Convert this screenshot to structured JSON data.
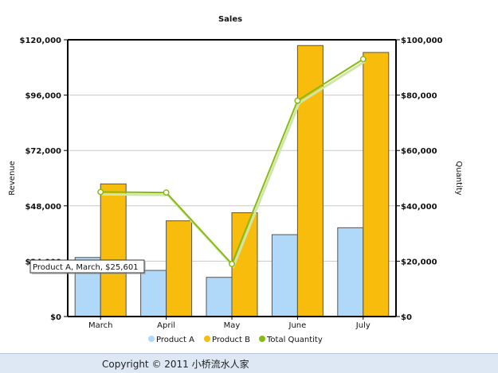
{
  "chart_data": {
    "type": "bar",
    "title": "Sales",
    "categories": [
      "March",
      "April",
      "May",
      "June",
      "July"
    ],
    "series": [
      {
        "name": "Product A",
        "type": "bar",
        "axis": "left",
        "color": "#b0d8f8",
        "values": [
          25601,
          20000,
          17000,
          35500,
          38500
        ]
      },
      {
        "name": "Product B",
        "type": "bar",
        "axis": "left",
        "color": "#f8bc0c",
        "values": [
          57500,
          41500,
          45000,
          117500,
          114500
        ]
      },
      {
        "name": "Total Quantity",
        "type": "line",
        "axis": "right",
        "color": "#88bb11",
        "values": [
          45000,
          44800,
          19000,
          78000,
          93000
        ]
      }
    ],
    "ylabel": "Revenue",
    "y2label": "Quantity",
    "ylim": [
      0,
      120000
    ],
    "y2lim": [
      0,
      100000
    ],
    "yticks": [
      "$0",
      "$24,000",
      "$48,000",
      "$72,000",
      "$96,000",
      "$120,000"
    ],
    "y2ticks": [
      "$0",
      "$20,000",
      "$40,000",
      "$60,000",
      "$80,000",
      "$100,000"
    ],
    "grid": true,
    "legend": "bottom",
    "tooltip": "Product A, March, $25,601"
  },
  "footer": {
    "text": "Copyright © 2011 小桥流水人家"
  }
}
